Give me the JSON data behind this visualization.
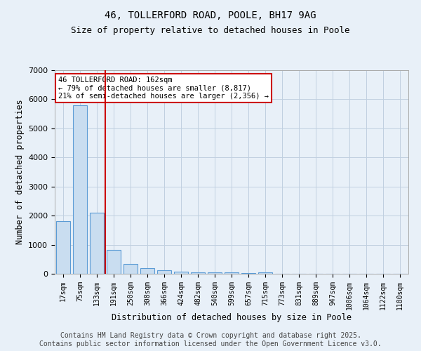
{
  "title_line1": "46, TOLLERFORD ROAD, POOLE, BH17 9AG",
  "title_line2": "Size of property relative to detached houses in Poole",
  "xlabel": "Distribution of detached houses by size in Poole",
  "ylabel": "Number of detached properties",
  "bar_labels": [
    "17sqm",
    "75sqm",
    "133sqm",
    "191sqm",
    "250sqm",
    "308sqm",
    "366sqm",
    "424sqm",
    "482sqm",
    "540sqm",
    "599sqm",
    "657sqm",
    "715sqm",
    "773sqm",
    "831sqm",
    "889sqm",
    "947sqm",
    "1006sqm",
    "1064sqm",
    "1122sqm",
    "1180sqm"
  ],
  "bar_values": [
    1800,
    5800,
    2100,
    820,
    340,
    200,
    110,
    80,
    60,
    40,
    60,
    20,
    60,
    0,
    0,
    0,
    0,
    0,
    0,
    0,
    0
  ],
  "bar_color": "#c9ddf0",
  "bar_edge_color": "#5b9bd5",
  "red_line_index": 2.5,
  "annotation_title": "46 TOLLERFORD ROAD: 162sqm",
  "annotation_line2": "← 79% of detached houses are smaller (8,817)",
  "annotation_line3": "21% of semi-detached houses are larger (2,356) →",
  "annotation_box_color": "#ffffff",
  "annotation_box_edge": "#cc0000",
  "red_line_color": "#cc0000",
  "ylim": [
    0,
    7000
  ],
  "yticks": [
    0,
    1000,
    2000,
    3000,
    4000,
    5000,
    6000,
    7000
  ],
  "grid_color": "#c0d0e0",
  "background_color": "#e8f0f8",
  "footer_line1": "Contains HM Land Registry data © Crown copyright and database right 2025.",
  "footer_line2": "Contains public sector information licensed under the Open Government Licence v3.0.",
  "title_fontsize": 10,
  "subtitle_fontsize": 9,
  "footer_fontsize": 7
}
